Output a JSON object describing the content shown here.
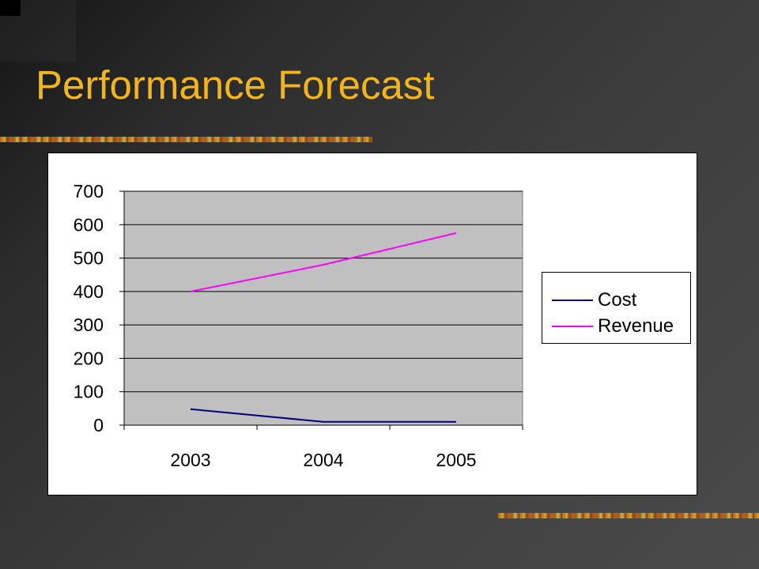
{
  "slide": {
    "title": "Performance Forecast",
    "title_color": "#f2b51c",
    "background": "#3a3a3a"
  },
  "chart_data": {
    "type": "line",
    "categories": [
      "2003",
      "2004",
      "2005"
    ],
    "series": [
      {
        "name": "Cost",
        "values": [
          48,
          10,
          10
        ],
        "color": "#000080"
      },
      {
        "name": "Revenue",
        "values": [
          400,
          480,
          575
        ],
        "color": "#ff00ff"
      }
    ],
    "ylim": [
      0,
      700
    ],
    "yticks": [
      "0",
      "100",
      "200",
      "300",
      "400",
      "500",
      "600",
      "700"
    ],
    "title": "",
    "xlabel": "",
    "ylabel": "",
    "plot_background": "#c0c0c0",
    "grid": true,
    "legend_position": "right"
  }
}
